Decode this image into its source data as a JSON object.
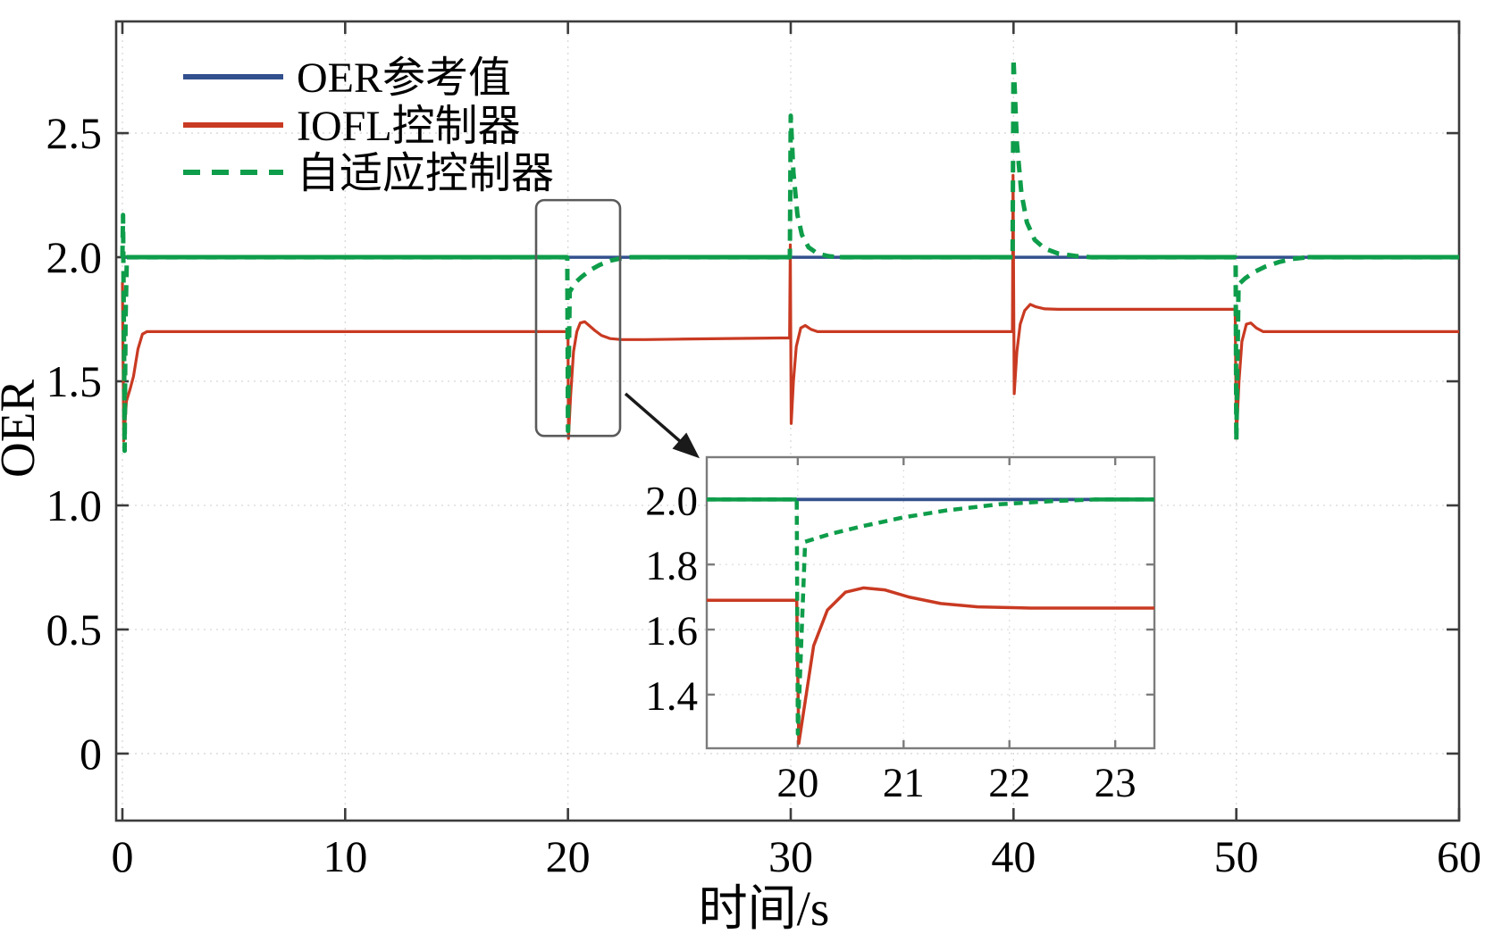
{
  "legend": {
    "items": [
      {
        "id": "oer-reference",
        "label": "OER参考值",
        "color": "#32508d",
        "line_style": "solid"
      },
      {
        "id": "iofl-controller",
        "label": "IOFL控制器",
        "color": "#c93a22",
        "line_style": "solid"
      },
      {
        "id": "adaptive-controller",
        "label": "自适应控制器",
        "color": "#0e9d4a",
        "line_style": "dashed"
      }
    ]
  },
  "chart_data": [
    {
      "id": "main",
      "type": "line",
      "title": "",
      "xlabel": "时间/s",
      "ylabel": "OER",
      "xlim": [
        -0.28,
        60
      ],
      "ylim": [
        -0.27,
        2.95
      ],
      "x_ticks": [
        0,
        10,
        20,
        30,
        40,
        50,
        60
      ],
      "x_tick_labels": [
        "0",
        "10",
        "20",
        "30",
        "40",
        "50",
        "60"
      ],
      "y_ticks": [
        0,
        0.5,
        1,
        1.5,
        2,
        2.5
      ],
      "y_tick_labels": [
        "0",
        "0.5",
        "1.0",
        "1.5",
        "2.0",
        "2.5"
      ],
      "grid": true,
      "legend_position": "top-left",
      "series": [
        {
          "id": "oer-reference",
          "name": "OER参考值",
          "color": "#32508d",
          "style": "solid",
          "width": 3.5,
          "points": [
            [
              0,
              2.0
            ],
            [
              60,
              2.0
            ]
          ]
        },
        {
          "id": "iofl-controller",
          "name": "IOFL控制器",
          "color": "#c93a22",
          "style": "solid",
          "width": 3.2,
          "points": [
            [
              0,
              1.9
            ],
            [
              0.06,
              1.26
            ],
            [
              0.18,
              1.42
            ],
            [
              0.35,
              1.47
            ],
            [
              0.5,
              1.52
            ],
            [
              0.7,
              1.63
            ],
            [
              0.9,
              1.69
            ],
            [
              1.1,
              1.7
            ],
            [
              19.95,
              1.7
            ],
            [
              20.0,
              1.7
            ],
            [
              20.02,
              1.27
            ],
            [
              20.12,
              1.44
            ],
            [
              20.25,
              1.62
            ],
            [
              20.4,
              1.7
            ],
            [
              20.55,
              1.735
            ],
            [
              20.75,
              1.74
            ],
            [
              20.95,
              1.725
            ],
            [
              21.2,
              1.705
            ],
            [
              21.5,
              1.685
            ],
            [
              21.9,
              1.672
            ],
            [
              22.4,
              1.668
            ],
            [
              23.5,
              1.668
            ],
            [
              25,
              1.67
            ],
            [
              29.95,
              1.675
            ],
            [
              29.98,
              2.05
            ],
            [
              30.02,
              1.33
            ],
            [
              30.12,
              1.5
            ],
            [
              30.25,
              1.64
            ],
            [
              30.45,
              1.715
            ],
            [
              30.65,
              1.725
            ],
            [
              30.9,
              1.71
            ],
            [
              31.2,
              1.7
            ],
            [
              32,
              1.7
            ],
            [
              39.95,
              1.7
            ],
            [
              39.98,
              2.33
            ],
            [
              40.03,
              1.45
            ],
            [
              40.15,
              1.62
            ],
            [
              40.3,
              1.73
            ],
            [
              40.5,
              1.785
            ],
            [
              40.75,
              1.81
            ],
            [
              41.0,
              1.8
            ],
            [
              41.4,
              1.792
            ],
            [
              42,
              1.79
            ],
            [
              49.95,
              1.79
            ],
            [
              50.0,
              1.27
            ],
            [
              50.12,
              1.5
            ],
            [
              50.25,
              1.66
            ],
            [
              50.45,
              1.73
            ],
            [
              50.65,
              1.735
            ],
            [
              50.9,
              1.715
            ],
            [
              51.2,
              1.7
            ],
            [
              52,
              1.7
            ],
            [
              60,
              1.7
            ]
          ]
        },
        {
          "id": "adaptive-controller",
          "name": "自适应控制器",
          "color": "#0e9d4a",
          "style": "dashed",
          "width": 5,
          "flat_value": 2.0,
          "flat_segments": [
            [
              0.2,
              19.97
            ],
            [
              22.8,
              29.96
            ],
            [
              32.2,
              39.96
            ],
            [
              43.5,
              49.97
            ],
            [
              53.2,
              60
            ]
          ],
          "points": [
            [
              0,
              2.0
            ],
            [
              0.03,
              2.17
            ],
            [
              0.08,
              1.55
            ],
            [
              0.1,
              1.22
            ],
            [
              0.14,
              1.75
            ],
            [
              0.2,
              2.0
            ],
            [
              19.97,
              2.0
            ],
            [
              20.0,
              1.3
            ],
            [
              20.08,
              1.86
            ],
            [
              20.3,
              1.895
            ],
            [
              20.6,
              1.92
            ],
            [
              21.0,
              1.948
            ],
            [
              21.4,
              1.968
            ],
            [
              21.9,
              1.986
            ],
            [
              22.4,
              1.996
            ],
            [
              22.8,
              2.0
            ],
            [
              29.96,
              2.0
            ],
            [
              30.0,
              2.57
            ],
            [
              30.12,
              2.34
            ],
            [
              30.3,
              2.17
            ],
            [
              30.5,
              2.09
            ],
            [
              30.8,
              2.04
            ],
            [
              31.2,
              2.015
            ],
            [
              31.7,
              2.004
            ],
            [
              32.2,
              2.0
            ],
            [
              39.96,
              2.0
            ],
            [
              40.0,
              2.8
            ],
            [
              40.15,
              2.46
            ],
            [
              40.35,
              2.26
            ],
            [
              40.6,
              2.14
            ],
            [
              40.95,
              2.07
            ],
            [
              41.4,
              2.035
            ],
            [
              42.0,
              2.015
            ],
            [
              42.8,
              2.005
            ],
            [
              43.5,
              2.0
            ],
            [
              49.97,
              2.0
            ],
            [
              50.0,
              1.26
            ],
            [
              50.1,
              1.89
            ],
            [
              50.4,
              1.915
            ],
            [
              50.8,
              1.94
            ],
            [
              51.3,
              1.962
            ],
            [
              51.9,
              1.98
            ],
            [
              52.5,
              1.993
            ],
            [
              53.2,
              2.0
            ],
            [
              60,
              2.0
            ]
          ]
        }
      ]
    },
    {
      "id": "inset",
      "type": "line",
      "title": "",
      "xlabel": "",
      "ylabel": "",
      "xlim": [
        19.14,
        23.37
      ],
      "ylim": [
        1.235,
        2.13
      ],
      "x_ticks": [
        20,
        21,
        22,
        23
      ],
      "x_tick_labels": [
        "20",
        "21",
        "22",
        "23"
      ],
      "y_ticks": [
        1.4,
        1.6,
        1.8,
        2.0
      ],
      "y_tick_labels": [
        "1.4",
        "1.6",
        "1.8",
        "2.0"
      ],
      "grid": true,
      "series": [
        {
          "id": "oer-reference",
          "name": "OER参考值",
          "color": "#32508d",
          "style": "solid",
          "width": 3.8,
          "points": [
            [
              19.14,
              2.0
            ],
            [
              23.37,
              2.0
            ]
          ]
        },
        {
          "id": "iofl-controller",
          "name": "IOFL控制器",
          "color": "#c93a22",
          "style": "solid",
          "width": 3.5,
          "points": [
            [
              19.14,
              1.69
            ],
            [
              19.99,
              1.69
            ],
            [
              20.01,
              1.25
            ],
            [
              20.15,
              1.55
            ],
            [
              20.28,
              1.66
            ],
            [
              20.45,
              1.715
            ],
            [
              20.62,
              1.728
            ],
            [
              20.82,
              1.722
            ],
            [
              21.05,
              1.7
            ],
            [
              21.35,
              1.68
            ],
            [
              21.7,
              1.67
            ],
            [
              22.2,
              1.666
            ],
            [
              23.37,
              1.666
            ]
          ]
        },
        {
          "id": "adaptive-controller",
          "name": "自适应控制器",
          "color": "#0e9d4a",
          "style": "dashed",
          "width": 4.5,
          "flat_value": 2.0,
          "flat_segments": [
            [
              19.14,
              19.99
            ],
            [
              22.8,
              23.37
            ]
          ],
          "points": [
            [
              19.14,
              2.0
            ],
            [
              19.99,
              2.0
            ],
            [
              20.0,
              1.28
            ],
            [
              20.07,
              1.87
            ],
            [
              20.3,
              1.893
            ],
            [
              20.6,
              1.917
            ],
            [
              21.0,
              1.945
            ],
            [
              21.4,
              1.966
            ],
            [
              21.9,
              1.985
            ],
            [
              22.4,
              1.995
            ],
            [
              22.8,
              2.0
            ],
            [
              23.37,
              2.0
            ]
          ]
        }
      ]
    }
  ],
  "callout": {
    "t_range": [
      18.57,
      22.34
    ],
    "v_range": [
      1.28,
      2.23
    ],
    "arrow_from": [
      22.58,
      1.45
    ],
    "arrow_to": [
      25.91,
      1.19
    ]
  }
}
